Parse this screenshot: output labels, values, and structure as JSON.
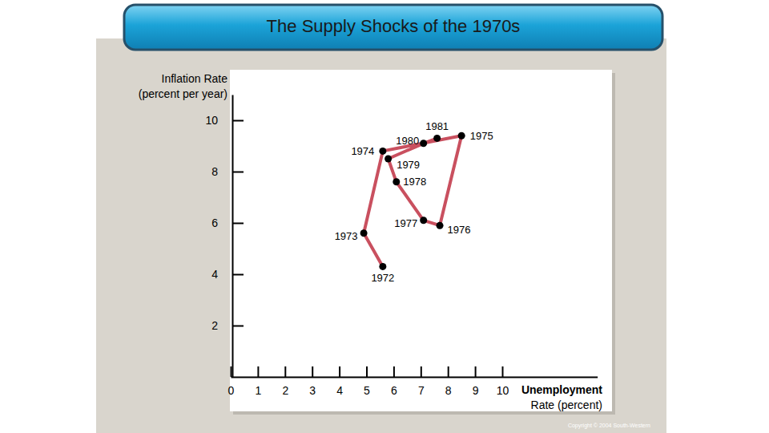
{
  "chart_data": {
    "type": "line",
    "title": "The Supply Shocks of the 1970s",
    "xlabel": "Unemployment\nRate (percent)",
    "ylabel": "Inflation Rate\n(percent per year)",
    "x": [
      5.6,
      4.9,
      5.6,
      8.5,
      7.7,
      7.1,
      6.1,
      5.8,
      7.1,
      7.6
    ],
    "values": [
      4.3,
      5.6,
      8.8,
      9.4,
      5.9,
      6.1,
      7.6,
      8.5,
      9.1,
      9.3
    ],
    "labels": [
      "1972",
      "1973",
      "1974",
      "1975",
      "1976",
      "1977",
      "1978",
      "1979",
      "1980",
      "1981"
    ],
    "color": "#c9505f",
    "marker": "circle",
    "xlim": [
      0,
      13.5
    ],
    "xticks": [
      0,
      1,
      2,
      3,
      4,
      5,
      6,
      7,
      8,
      9,
      10
    ],
    "ylim": [
      0,
      11
    ],
    "yticks": [
      2,
      4,
      6,
      8,
      10
    ],
    "source": "Copyright © 2004 South-Western"
  }
}
